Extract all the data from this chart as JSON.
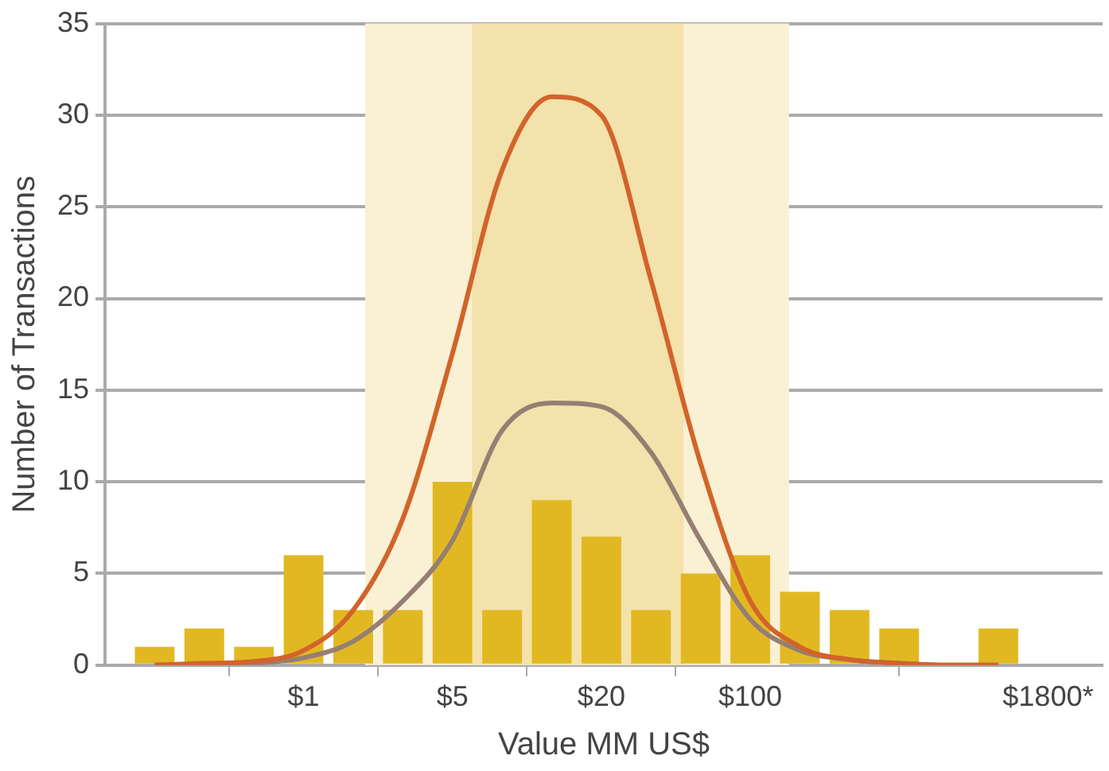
{
  "chart_data": {
    "type": "bar",
    "xlabel": "Value MM US$",
    "ylabel": "Number of Transactions",
    "categories": [
      null,
      null,
      null,
      "$1",
      null,
      null,
      "$5",
      null,
      null,
      "$20",
      null,
      null,
      "$100",
      null,
      null,
      null,
      null,
      null,
      "$1800*"
    ],
    "series": [
      {
        "color": "#e2b822",
        "values": [
          1,
          2,
          1,
          6,
          3,
          3,
          10,
          3,
          9,
          7,
          3,
          5,
          6,
          4,
          3,
          2,
          null,
          2,
          null
        ]
      },
      {
        "type": "line",
        "color": "#d2642a",
        "values": [
          0,
          0.1,
          0.2,
          0.8,
          3,
          8,
          17,
          27,
          31,
          30,
          21,
          11,
          3.5,
          1,
          0.3,
          0.1,
          0,
          0,
          null
        ]
      },
      {
        "type": "line",
        "color": "#957f73",
        "values": [
          0,
          0,
          0.1,
          0.4,
          1.3,
          3.5,
          6.8,
          12.8,
          14.3,
          14.1,
          11.6,
          6.8,
          2.5,
          0.8,
          0.3,
          0.1,
          0,
          0,
          null
        ]
      }
    ],
    "ylim": [
      0,
      35
    ],
    "yticks": [
      0,
      5,
      10,
      15,
      20,
      25,
      30,
      35
    ],
    "grid": "y",
    "legend": false,
    "marker": "none",
    "line_style": "solid"
  }
}
